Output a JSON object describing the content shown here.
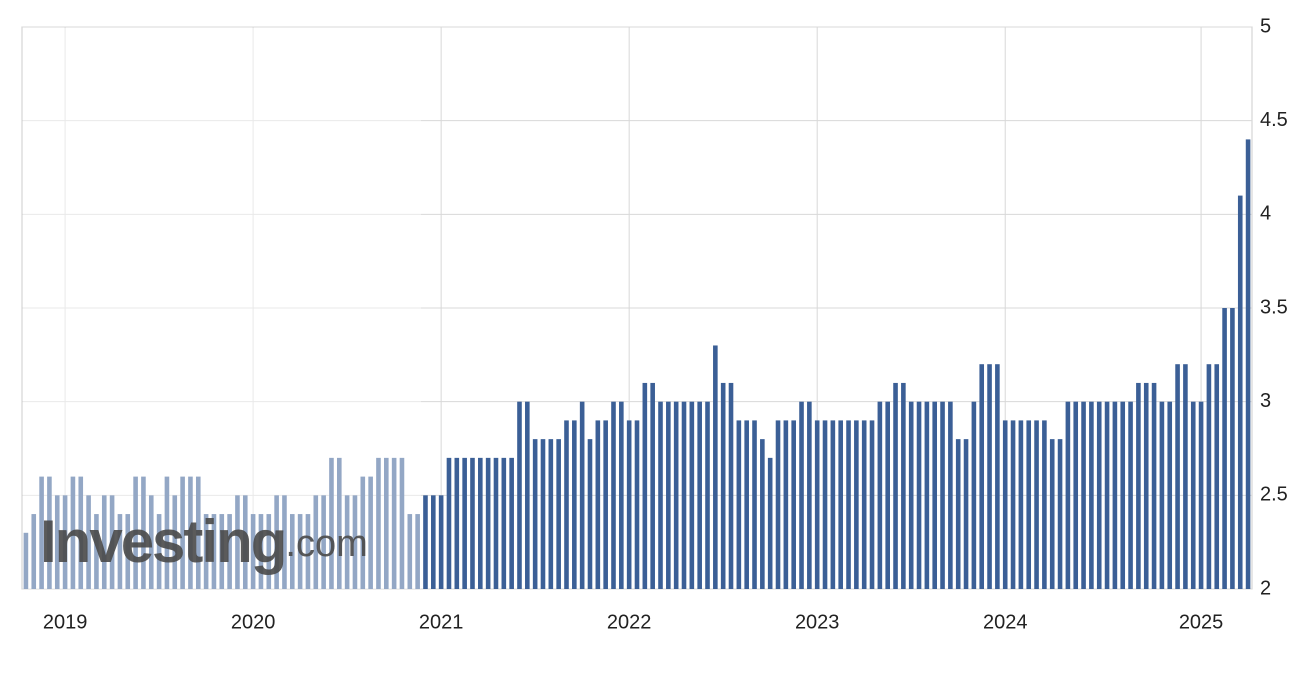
{
  "chart_data": {
    "type": "bar",
    "watermark": [
      "Investing",
      ".com"
    ],
    "categories": [
      null,
      null,
      null,
      null,
      null,
      "2019",
      null,
      null,
      null,
      null,
      null,
      null,
      null,
      null,
      null,
      null,
      null,
      null,
      null,
      null,
      null,
      null,
      null,
      null,
      null,
      null,
      null,
      null,
      null,
      "2020",
      null,
      null,
      null,
      null,
      null,
      null,
      null,
      null,
      null,
      null,
      null,
      null,
      null,
      null,
      null,
      null,
      null,
      null,
      null,
      null,
      null,
      null,
      null,
      "2021",
      null,
      null,
      null,
      null,
      null,
      null,
      null,
      null,
      null,
      null,
      null,
      null,
      null,
      null,
      null,
      null,
      null,
      null,
      null,
      null,
      null,
      null,
      null,
      "2022",
      null,
      null,
      null,
      null,
      null,
      null,
      null,
      null,
      null,
      null,
      null,
      null,
      null,
      null,
      null,
      null,
      null,
      null,
      null,
      null,
      null,
      null,
      null,
      "2023",
      null,
      null,
      null,
      null,
      null,
      null,
      null,
      null,
      null,
      null,
      null,
      null,
      null,
      null,
      null,
      null,
      null,
      null,
      null,
      null,
      null,
      null,
      null,
      "2024",
      null,
      null,
      null,
      null,
      null,
      null,
      null,
      null,
      null,
      null,
      null,
      null,
      null,
      null,
      null,
      null,
      null,
      null,
      null,
      null,
      null,
      null,
      null,
      null,
      "2025",
      null,
      null,
      null,
      null,
      null,
      null
    ],
    "values": [
      2.3,
      2.4,
      2.6,
      2.6,
      2.5,
      2.5,
      2.6,
      2.6,
      2.5,
      2.4,
      2.5,
      2.5,
      2.4,
      2.4,
      2.6,
      2.6,
      2.5,
      2.4,
      2.6,
      2.5,
      2.6,
      2.6,
      2.6,
      2.4,
      2.4,
      2.4,
      2.4,
      2.5,
      2.5,
      2.4,
      2.4,
      2.4,
      2.5,
      2.5,
      2.4,
      2.4,
      2.4,
      2.5,
      2.5,
      2.7,
      2.7,
      2.5,
      2.5,
      2.6,
      2.6,
      2.7,
      2.7,
      2.7,
      2.7,
      2.4,
      2.4,
      2.5,
      2.5,
      2.5,
      2.7,
      2.7,
      2.7,
      2.7,
      2.7,
      2.7,
      2.7,
      2.7,
      2.7,
      3.0,
      3.0,
      2.8,
      2.8,
      2.8,
      2.8,
      2.9,
      2.9,
      3.0,
      2.8,
      2.9,
      2.9,
      3.0,
      3.0,
      2.9,
      2.9,
      3.1,
      3.1,
      3.0,
      3.0,
      3.0,
      3.0,
      3.0,
      3.0,
      3.0,
      3.3,
      3.1,
      3.1,
      2.9,
      2.9,
      2.9,
      2.8,
      2.7,
      2.9,
      2.9,
      2.9,
      3.0,
      3.0,
      2.9,
      2.9,
      2.9,
      2.9,
      2.9,
      2.9,
      2.9,
      2.9,
      3.0,
      3.0,
      3.1,
      3.1,
      3.0,
      3.0,
      3.0,
      3.0,
      3.0,
      3.0,
      2.8,
      2.8,
      3.0,
      3.2,
      3.2,
      3.2,
      2.9,
      2.9,
      2.9,
      2.9,
      2.9,
      2.9,
      2.8,
      2.8,
      3.0,
      3.0,
      3.0,
      3.0,
      3.0,
      3.0,
      3.0,
      3.0,
      3.0,
      3.1,
      3.1,
      3.1,
      3.0,
      3.0,
      3.2,
      3.2,
      3.0,
      3.0,
      3.2,
      3.2,
      3.5,
      3.5,
      4.1,
      4.4
    ],
    "color": "#3b5f96",
    "ylim": [
      2,
      5
    ],
    "yticks": [
      2,
      2.5,
      3,
      3.5,
      4,
      4.5,
      5
    ],
    "grid": true
  }
}
